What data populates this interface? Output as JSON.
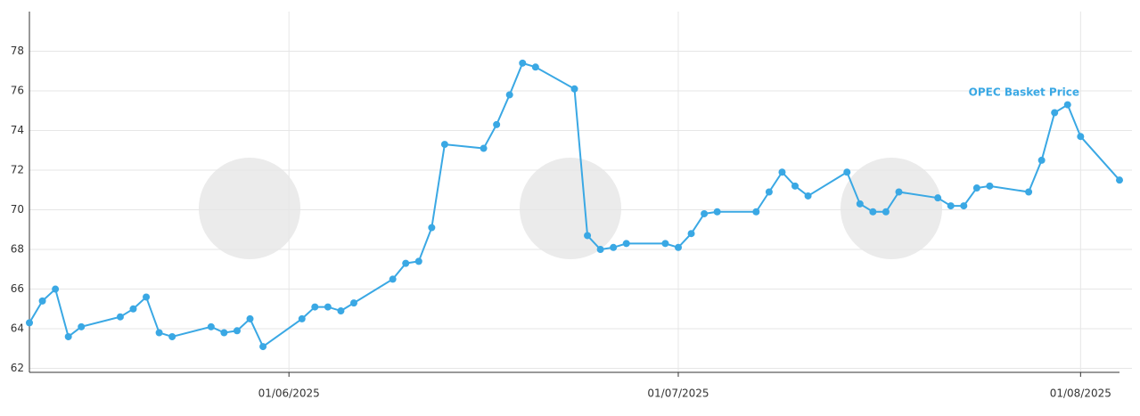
{
  "chart_data": {
    "type": "line",
    "x": [
      "2025-05-12",
      "2025-05-13",
      "2025-05-14",
      "2025-05-15",
      "2025-05-16",
      "2025-05-19",
      "2025-05-20",
      "2025-05-21",
      "2025-05-22",
      "2025-05-23",
      "2025-05-26",
      "2025-05-27",
      "2025-05-28",
      "2025-05-29",
      "2025-05-30",
      "2025-06-02",
      "2025-06-03",
      "2025-06-04",
      "2025-06-05",
      "2025-06-06",
      "2025-06-09",
      "2025-06-10",
      "2025-06-11",
      "2025-06-12",
      "2025-06-13",
      "2025-06-16",
      "2025-06-17",
      "2025-06-18",
      "2025-06-19",
      "2025-06-20",
      "2025-06-23",
      "2025-06-24",
      "2025-06-25",
      "2025-06-26",
      "2025-06-27",
      "2025-06-30",
      "2025-07-01",
      "2025-07-02",
      "2025-07-03",
      "2025-07-04",
      "2025-07-07",
      "2025-07-08",
      "2025-07-09",
      "2025-07-10",
      "2025-07-11",
      "2025-07-14",
      "2025-07-15",
      "2025-07-16",
      "2025-07-17",
      "2025-07-18",
      "2025-07-21",
      "2025-07-22",
      "2025-07-23",
      "2025-07-24",
      "2025-07-25",
      "2025-07-28",
      "2025-07-29",
      "2025-07-30",
      "2025-07-31",
      "2025-08-01",
      "2025-08-04"
    ],
    "series": [
      {
        "name": "OPEC Basket Price",
        "color": "#3aa8e4",
        "values": [
          64.3,
          65.4,
          66.0,
          63.6,
          64.1,
          64.6,
          65.0,
          65.6,
          63.8,
          63.6,
          64.1,
          63.8,
          63.9,
          64.5,
          63.1,
          64.5,
          65.1,
          65.1,
          64.9,
          65.3,
          66.5,
          67.3,
          67.4,
          69.1,
          73.3,
          73.1,
          74.3,
          75.8,
          77.4,
          77.2,
          76.1,
          68.7,
          68.0,
          68.1,
          68.3,
          68.3,
          68.1,
          68.8,
          69.8,
          69.9,
          69.9,
          70.9,
          71.9,
          71.2,
          70.7,
          71.9,
          70.3,
          69.9,
          69.9,
          70.9,
          70.6,
          70.2,
          70.2,
          71.1,
          71.2,
          70.9,
          72.5,
          74.9,
          75.3,
          73.7,
          71.5
        ]
      }
    ],
    "xlim": [
      "2025-05-12",
      "2025-08-04"
    ],
    "xticks": [
      {
        "value": "2025-06-01",
        "label": "01/06/2025"
      },
      {
        "value": "2025-07-01",
        "label": "01/07/2025"
      },
      {
        "value": "2025-08-01",
        "label": "01/08/2025"
      }
    ],
    "ylim": [
      61.8,
      80
    ],
    "yticks": [
      62,
      64,
      66,
      68,
      70,
      72,
      74,
      76,
      78
    ],
    "grid": true
  }
}
